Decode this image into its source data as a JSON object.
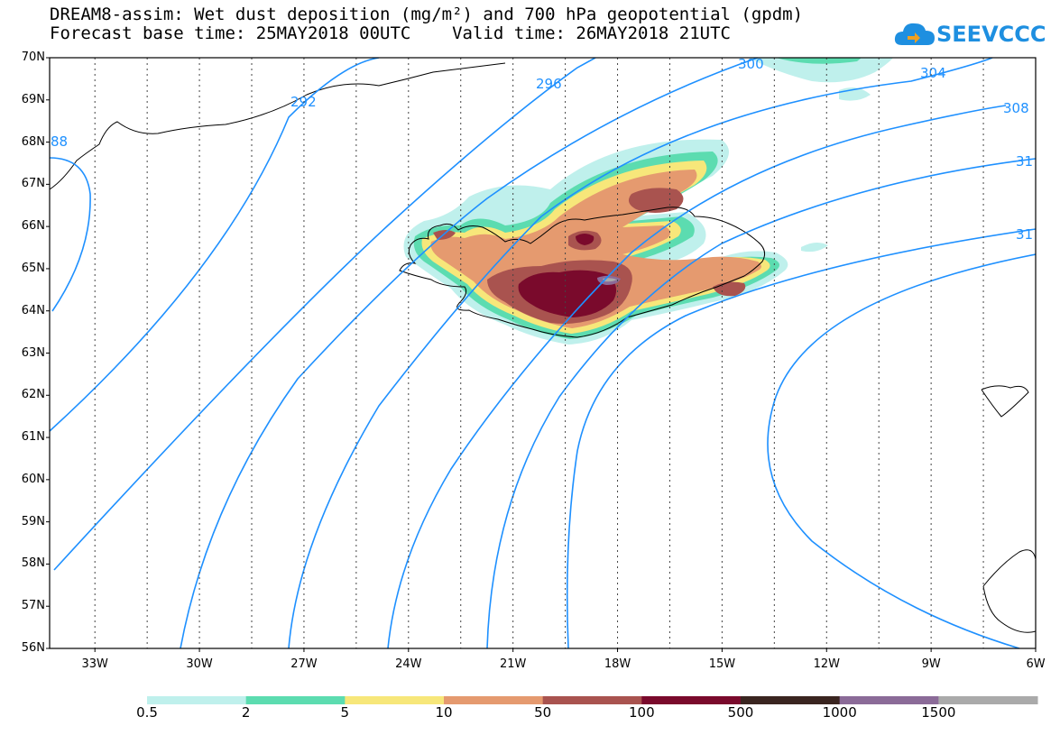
{
  "header": {
    "line1": "DREAM8-assim: Wet dust deposition (mg/m²) and 700 hPa geopotential (gpdm)",
    "line2": "Forecast base time: 25MAY2018 00UTC    Valid time: 26MAY2018 21UTC"
  },
  "logo": {
    "text": "SEEVCCC"
  },
  "axes": {
    "lat_labels": [
      "70N",
      "69N",
      "68N",
      "67N",
      "66N",
      "65N",
      "64N",
      "63N",
      "62N",
      "61N",
      "60N",
      "59N",
      "58N",
      "57N",
      "56N"
    ],
    "lon_labels": [
      "33W",
      "30W",
      "27W",
      "24W",
      "21W",
      "18W",
      "15W",
      "12W",
      "9W",
      "6W"
    ],
    "lat_range": [
      56,
      70
    ],
    "lon_range": [
      -34.3,
      -6
    ]
  },
  "contours": {
    "color": "#1e90ff",
    "labels": [
      "88",
      "292",
      "296",
      "300",
      "304",
      "308",
      "31",
      "31"
    ]
  },
  "colorbar": {
    "ticks": [
      "0.5",
      "2",
      "5",
      "10",
      "50",
      "100",
      "500",
      "1000",
      "1500"
    ],
    "colors": [
      "#bff0ec",
      "#5cdcb0",
      "#f7e77a",
      "#e59a6f",
      "#a9534f",
      "#7a0a2c",
      "#3a2520",
      "#8b6b98",
      "#aaaaaa"
    ]
  }
}
